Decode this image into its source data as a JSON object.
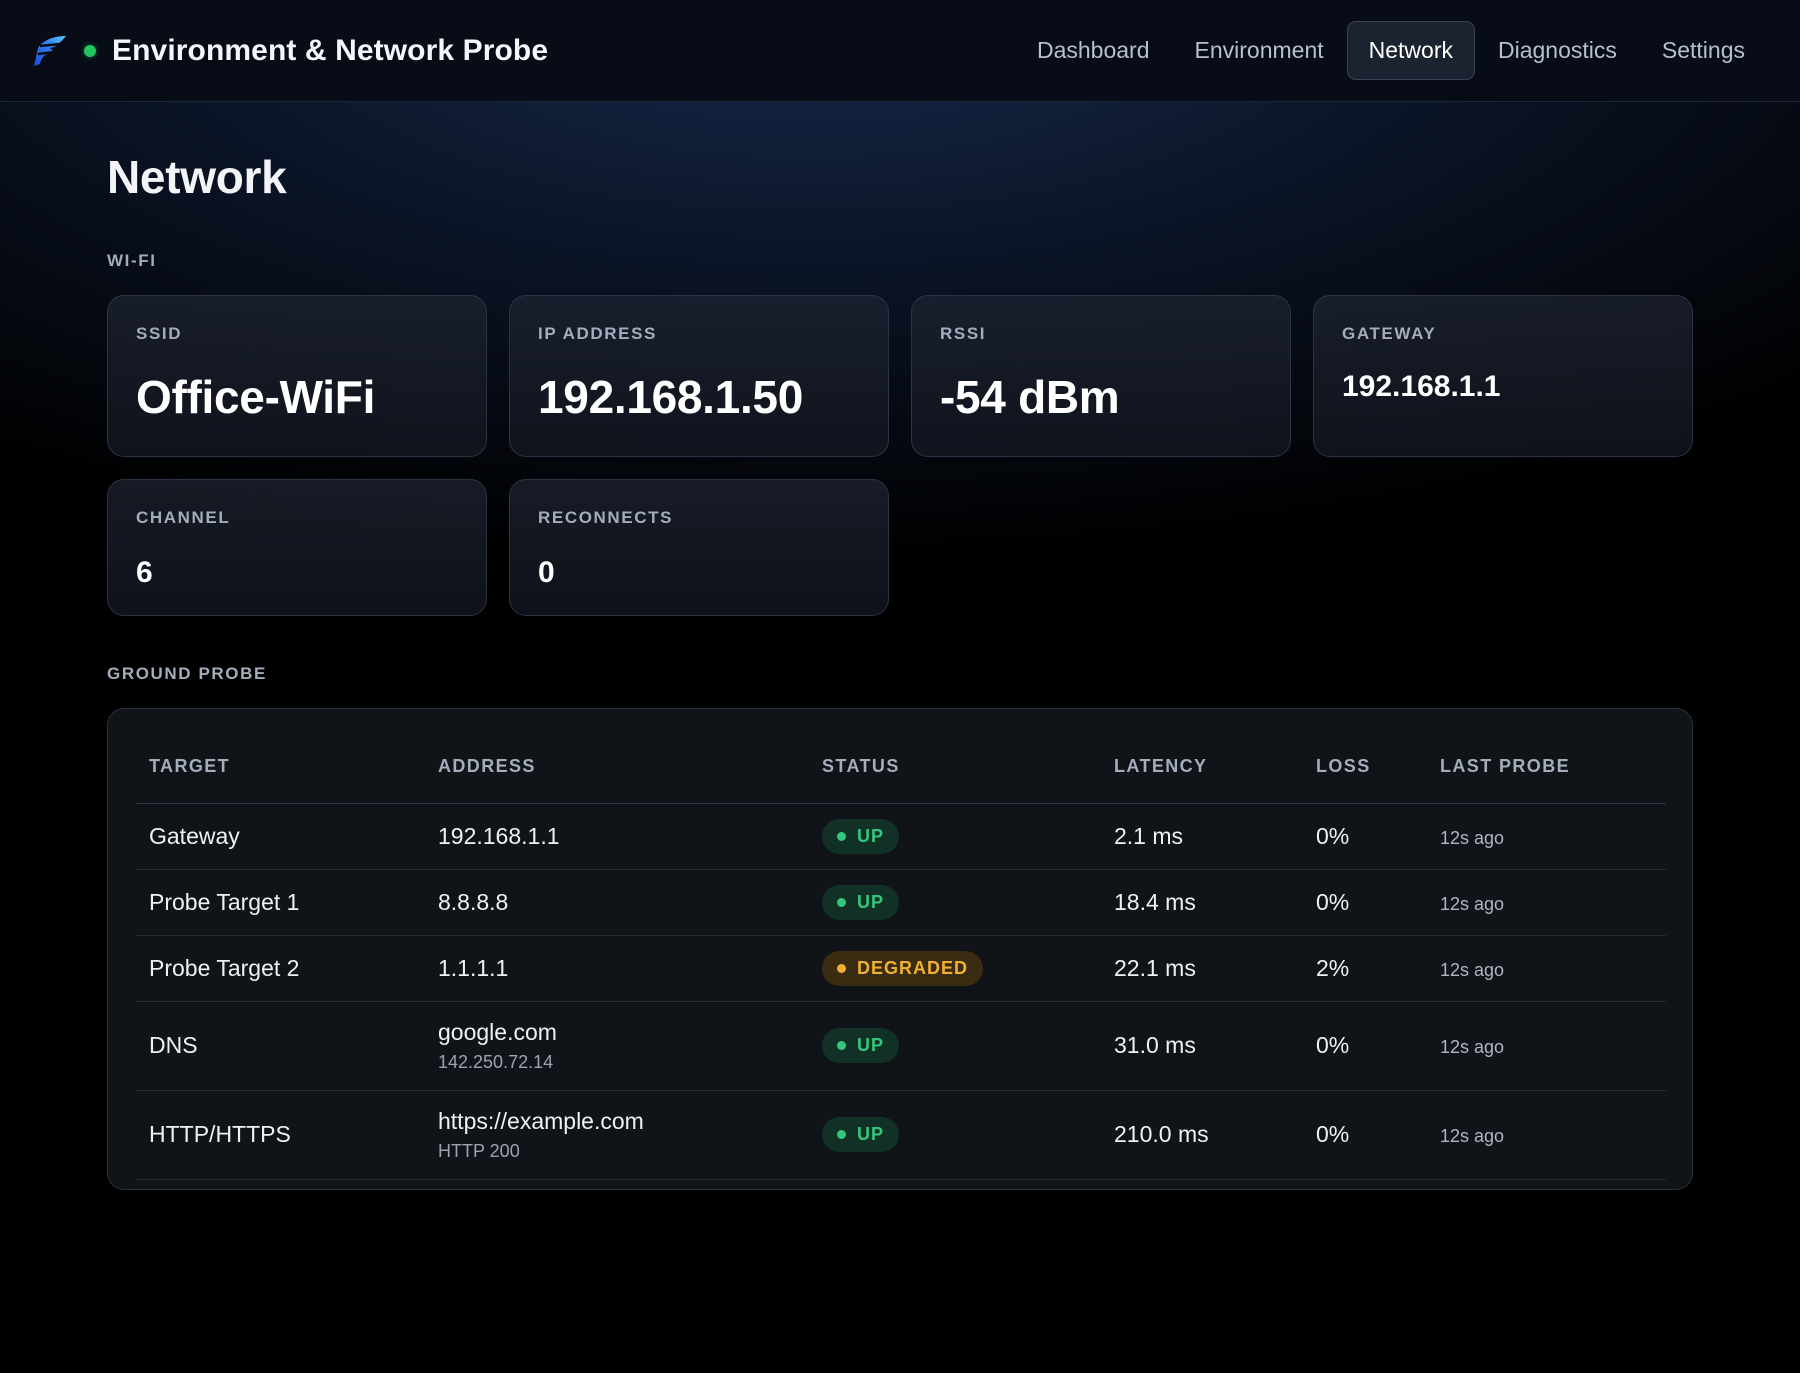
{
  "header": {
    "title": "Environment & Network Probe",
    "logo_icon": "feather-logo-icon",
    "status_color": "#22c55e",
    "nav": [
      {
        "label": "Dashboard",
        "active": false
      },
      {
        "label": "Environment",
        "active": false
      },
      {
        "label": "Network",
        "active": true
      },
      {
        "label": "Diagnostics",
        "active": false
      },
      {
        "label": "Settings",
        "active": false
      }
    ]
  },
  "page": {
    "title": "Network"
  },
  "wifi": {
    "section_label": "WI-FI",
    "ssid": {
      "label": "SSID",
      "value": "Office-WiFi"
    },
    "ip": {
      "label": "IP ADDRESS",
      "value": "192.168.1.50"
    },
    "rssi": {
      "label": "RSSI",
      "value": "-54 dBm"
    },
    "gateway": {
      "label": "GATEWAY",
      "value": "192.168.1.1"
    },
    "channel": {
      "label": "CHANNEL",
      "value": "6"
    },
    "reconnects": {
      "label": "RECONNECTS",
      "value": "0"
    }
  },
  "probe": {
    "section_label": "GROUND PROBE",
    "columns": [
      "TARGET",
      "ADDRESS",
      "STATUS",
      "LATENCY",
      "LOSS",
      "LAST PROBE"
    ],
    "rows": [
      {
        "target": "Gateway",
        "address": "192.168.1.1",
        "address_sub": "",
        "status": "UP",
        "latency": "2.1 ms",
        "loss": "0%",
        "last_probe": "12s ago"
      },
      {
        "target": "Probe Target 1",
        "address": "8.8.8.8",
        "address_sub": "",
        "status": "UP",
        "latency": "18.4 ms",
        "loss": "0%",
        "last_probe": "12s ago"
      },
      {
        "target": "Probe Target 2",
        "address": "1.1.1.1",
        "address_sub": "",
        "status": "DEGRADED",
        "latency": "22.1 ms",
        "loss": "2%",
        "last_probe": "12s ago"
      },
      {
        "target": "DNS",
        "address": "google.com",
        "address_sub": "142.250.72.14",
        "status": "UP",
        "latency": "31.0 ms",
        "loss": "0%",
        "last_probe": "12s ago"
      },
      {
        "target": "HTTP/HTTPS",
        "address": "https://example.com",
        "address_sub": "HTTP 200",
        "status": "UP",
        "latency": "210.0 ms",
        "loss": "0%",
        "last_probe": "12s ago"
      }
    ],
    "status_colors": {
      "UP": "#34c77b",
      "DEGRADED": "#f0b033"
    }
  }
}
